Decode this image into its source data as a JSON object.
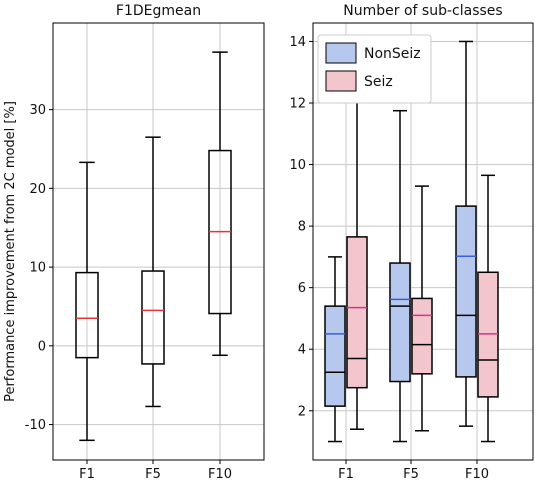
{
  "chart_data": [
    {
      "type": "box",
      "title": "F1DEgmean",
      "ylabel": "Performance improvement from 2C model [%]",
      "xlabel": "",
      "categories": [
        "F1",
        "F5",
        "F10"
      ],
      "ylim": [
        -14.5,
        41
      ],
      "yticks": [
        -10,
        0,
        10,
        20,
        30
      ],
      "ytick_labels": [
        "-10",
        "0",
        "10",
        "20",
        "30"
      ],
      "grid": true,
      "median_color": "#e8333a",
      "series": [
        {
          "boxes": [
            {
              "min": -12.0,
              "q1": -1.5,
              "median": 3.5,
              "q3": 9.3,
              "max": 23.3
            },
            {
              "min": -7.7,
              "q1": -2.3,
              "median": 4.5,
              "q3": 9.5,
              "max": 26.5
            },
            {
              "min": -1.2,
              "q1": 4.1,
              "median": 14.5,
              "q3": 24.8,
              "max": 37.3
            }
          ]
        }
      ]
    },
    {
      "type": "box",
      "title": "Number of sub-classes",
      "ylabel": "",
      "xlabel": "",
      "categories": [
        "F1",
        "F5",
        "F10"
      ],
      "ylim": [
        0.4,
        14.6
      ],
      "yticks": [
        2,
        4,
        6,
        8,
        10,
        12,
        14
      ],
      "ytick_labels": [
        "2",
        "4",
        "6",
        "8",
        "10",
        "12",
        "14"
      ],
      "grid": true,
      "legend": {
        "placement": "top-left"
      },
      "series": [
        {
          "name": "NonSeiz",
          "color": "#b7c8ee",
          "mean_color": "#3b5fd8",
          "boxes": [
            {
              "min": 1.0,
              "q1": 2.15,
              "median": 3.25,
              "mean": 4.5,
              "q3": 5.4,
              "max": 7.0
            },
            {
              "min": 1.0,
              "q1": 2.95,
              "median": 5.4,
              "mean": 5.62,
              "q3": 6.8,
              "max": 11.75
            },
            {
              "min": 1.5,
              "q1": 3.1,
              "median": 5.1,
              "mean": 7.02,
              "q3": 8.65,
              "max": 14.0
            }
          ]
        },
        {
          "name": "Seiz",
          "color": "#f3c5cc",
          "mean_color": "#d6338c",
          "boxes": [
            {
              "min": 1.4,
              "q1": 2.75,
              "median": 3.7,
              "mean": 5.35,
              "q3": 7.65,
              "max": 14.0
            },
            {
              "min": 1.35,
              "q1": 3.2,
              "median": 4.15,
              "mean": 5.1,
              "q3": 5.65,
              "max": 9.3
            },
            {
              "min": 1.0,
              "q1": 2.45,
              "median": 3.65,
              "mean": 4.5,
              "q3": 6.5,
              "max": 9.65
            }
          ]
        }
      ]
    }
  ]
}
